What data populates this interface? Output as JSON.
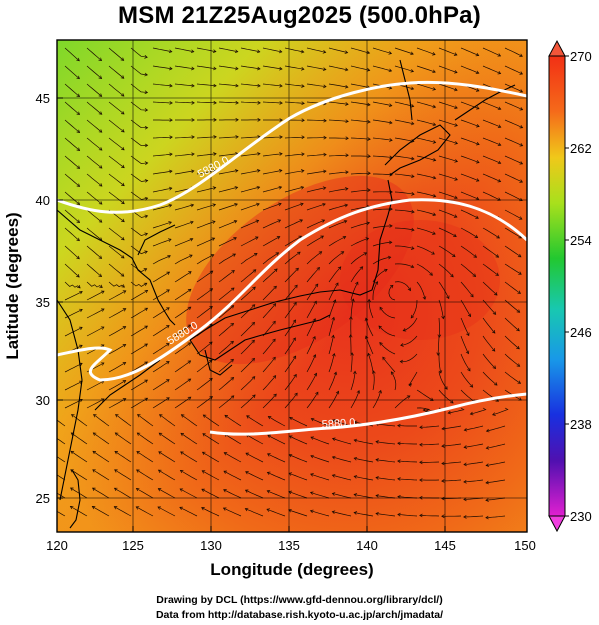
{
  "title": "MSM 21Z25Aug2025 (500.0hPa)",
  "axes": {
    "x_label": "Longitude (degrees)",
    "y_label": "Latitude  (degrees)",
    "x_ticks": [
      "120",
      "125",
      "130",
      "135",
      "140",
      "145",
      "150"
    ],
    "y_ticks": [
      "25",
      "30",
      "35",
      "40",
      "45"
    ],
    "x_range": [
      120,
      150
    ],
    "y_range": [
      23,
      48
    ]
  },
  "colorbar": {
    "labels": [
      "270",
      "262",
      "254",
      "246",
      "238",
      "230"
    ],
    "min": 230,
    "max": 270
  },
  "contours": [
    {
      "label": "5880.0"
    },
    {
      "label": "5880.0"
    },
    {
      "label": "5880.0"
    }
  ],
  "credits": {
    "line1": "Drawing by DCL (https://www.gfd-dennou.org/library/dcl/)",
    "line2": "Data from http://database.rish.kyoto-u.ac.jp/arch/jmadata/"
  }
}
